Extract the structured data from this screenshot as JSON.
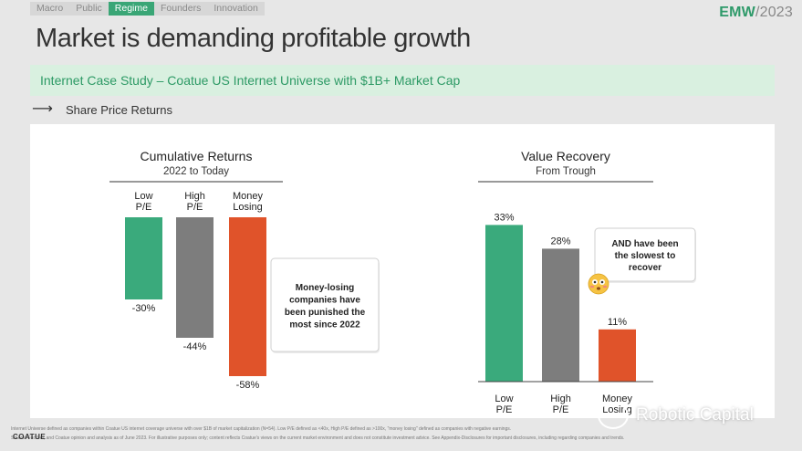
{
  "nav": {
    "tabs": [
      "Macro",
      "Public",
      "Regime",
      "Founders",
      "Innovation"
    ],
    "active": "Regime"
  },
  "brand": {
    "prefix": "EMW",
    "suffix": "/2023"
  },
  "title": "Market is demanding profitable growth",
  "banner": "Internet Case Study – Coatue US Internet Universe with $1B+ Market Cap",
  "subheading": "Share Price Returns",
  "colors": {
    "green": "#3aaa7c",
    "gray": "#7d7d7d",
    "red": "#e0532a",
    "accent": "#2f9a6a"
  },
  "chart_data": [
    {
      "type": "bar",
      "title": "Cumulative Returns",
      "subtitle": "2022 to Today",
      "categories": [
        "Low P/E",
        "High P/E",
        "Money Losing"
      ],
      "values": [
        -30,
        -44,
        -58
      ],
      "value_labels": [
        "-30%",
        "-44%",
        "-58%"
      ],
      "ylim": [
        -60,
        0
      ],
      "annotation": "Money-losing companies have been punished the most since 2022"
    },
    {
      "type": "bar",
      "title": "Value Recovery",
      "subtitle": "From Trough",
      "categories": [
        "Low P/E",
        "High P/E",
        "Money Losing"
      ],
      "values": [
        33,
        28,
        11
      ],
      "value_labels": [
        "33%",
        "28%",
        "11%"
      ],
      "ylim": [
        0,
        35
      ],
      "annotation": "AND have been the slowest to recover"
    }
  ],
  "footer": {
    "logo": "COATUE",
    "note_line1": "Internet Universe defined as companies within Coatue US internet coverage universe with over $1B of market capitalization (N=54). Low P/E defined as <40x, High P/E defined as >100x, \"money losing\" defined as companies with negative earnings.",
    "note_line2": "Source: FactSet, and Coatue opinion and analysis as of June 2023. For illustrative purposes only; content reflects Coatue's views on the current market environment and does not constitute investment advice. See Appendix-Disclosures for important disclosures, including regarding companies and trends."
  },
  "watermark": "Robotic Capital"
}
